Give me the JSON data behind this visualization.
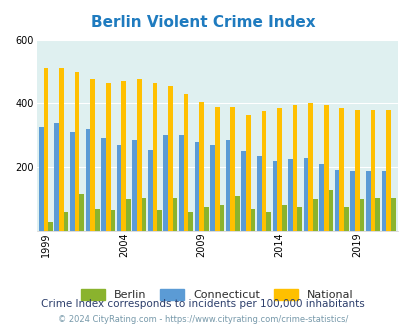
{
  "title": "Berlin Violent Crime Index",
  "subtitle": "Crime Index corresponds to incidents per 100,000 inhabitants",
  "footer": "© 2024 CityRating.com - https://www.cityrating.com/crime-statistics/",
  "years": [
    1999,
    2000,
    2001,
    2002,
    2003,
    2004,
    2005,
    2006,
    2007,
    2008,
    2009,
    2010,
    2011,
    2012,
    2013,
    2014,
    2015,
    2016,
    2017,
    2018,
    2019,
    2020,
    2021
  ],
  "berlin": [
    28,
    60,
    115,
    70,
    65,
    100,
    105,
    65,
    105,
    60,
    75,
    80,
    110,
    70,
    60,
    80,
    75,
    100,
    130,
    75,
    100,
    105,
    105
  ],
  "connecticut": [
    325,
    340,
    310,
    320,
    290,
    270,
    285,
    255,
    300,
    300,
    280,
    270,
    285,
    250,
    235,
    220,
    225,
    230,
    210,
    190,
    188,
    188,
    188
  ],
  "national": [
    510,
    510,
    500,
    475,
    465,
    470,
    475,
    465,
    455,
    430,
    405,
    390,
    390,
    365,
    375,
    385,
    395,
    400,
    395,
    385,
    380,
    380,
    380
  ],
  "berlin_color": "#8ab32e",
  "connecticut_color": "#5b9bd5",
  "national_color": "#ffc000",
  "bg_color": "#dff0f0",
  "ylim": [
    0,
    600
  ],
  "yticks": [
    200,
    400,
    600
  ],
  "title_color": "#1f7bbf",
  "subtitle_color": "#2c3e6b",
  "footer_color": "#7799aa",
  "xtick_labels": [
    "1999",
    "2004",
    "2009",
    "2014",
    "2019"
  ],
  "xtick_positions": [
    0,
    5,
    10,
    15,
    20
  ]
}
